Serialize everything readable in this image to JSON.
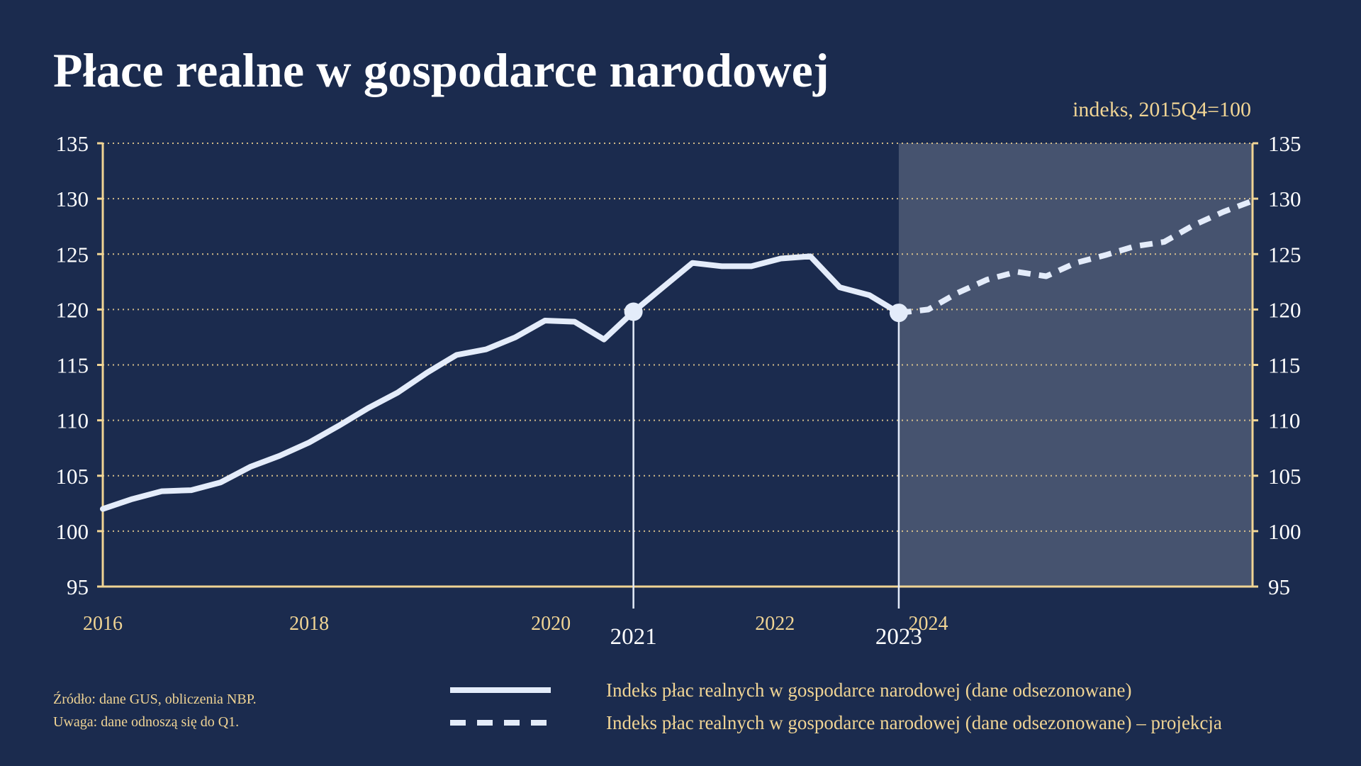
{
  "title": "Płace realne w gospodarce narodowej",
  "unit_note": "indeks, 2015Q4=100",
  "footnotes": {
    "source": "Źródło: dane GUS, obliczenia NBP.",
    "note": "Uwaga: dane odnoszą się do Q1."
  },
  "legend": {
    "actual": "Indeks płac realnych w gospodarce narodowej (dane odsezonowane)",
    "projection": "Indeks płac realnych w gospodarce narodowej (dane odsezonowane) – projekcja"
  },
  "colors": {
    "background": "#1b2b4e",
    "axis": "#f0d494",
    "line": "#e4ecfa",
    "projection_band": "#46536f"
  },
  "chart_data": {
    "type": "line",
    "y_ticks": [
      95,
      100,
      105,
      110,
      115,
      120,
      125,
      130,
      135
    ],
    "ylim": [
      95,
      135
    ],
    "x_range": [
      2016.0,
      2025.75
    ],
    "grid": "horizontal dotted",
    "x_tick_labels": [
      {
        "label": "2016",
        "x": 2016.0,
        "style": "minor"
      },
      {
        "label": "2018",
        "x": 2017.75,
        "style": "minor"
      },
      {
        "label": "2020",
        "x": 2019.8,
        "style": "minor"
      },
      {
        "label": "2021",
        "x": 2020.5,
        "style": "major"
      },
      {
        "label": "2022",
        "x": 2021.7,
        "style": "minor"
      },
      {
        "label": "2023",
        "x": 2022.75,
        "style": "major"
      },
      {
        "label": "2024",
        "x": 2023.0,
        "style": "minor"
      }
    ],
    "projection_start": 2022.75,
    "markers": [
      {
        "x": 2020.5,
        "y": 119.8
      },
      {
        "x": 2022.75,
        "y": 119.7
      }
    ],
    "series": [
      {
        "name": "Indeks płac realnych w gospodarce narodowej (dane odsezonowane)",
        "style": "solid",
        "x": [
          2016.0,
          2016.25,
          2016.5,
          2016.75,
          2017.0,
          2017.25,
          2017.5,
          2017.75,
          2018.0,
          2018.25,
          2018.5,
          2018.75,
          2019.0,
          2019.25,
          2019.5,
          2019.75,
          2020.0,
          2020.25,
          2020.5,
          2020.75,
          2021.0,
          2021.25,
          2021.5,
          2021.75,
          2022.0,
          2022.25,
          2022.5,
          2022.75
        ],
        "y": [
          102.0,
          102.9,
          103.6,
          103.7,
          104.4,
          105.8,
          106.8,
          108.0,
          109.5,
          111.1,
          112.5,
          114.3,
          115.9,
          116.4,
          117.5,
          119.0,
          118.9,
          117.3,
          119.8,
          122.0,
          124.2,
          123.9,
          123.9,
          124.6,
          124.8,
          122.0,
          121.3,
          119.7
        ]
      },
      {
        "name": "Indeks płac realnych w gospodarce narodowej (dane odsezonowane) – projekcja",
        "style": "dashed",
        "x": [
          2022.75,
          2023.0,
          2023.25,
          2023.5,
          2023.75,
          2024.0,
          2024.25,
          2024.5,
          2024.75,
          2025.0,
          2025.25,
          2025.5,
          2025.75
        ],
        "y": [
          119.7,
          120.0,
          121.5,
          122.7,
          123.4,
          123.0,
          124.2,
          124.9,
          125.7,
          126.1,
          127.6,
          128.8,
          129.8
        ]
      }
    ]
  }
}
